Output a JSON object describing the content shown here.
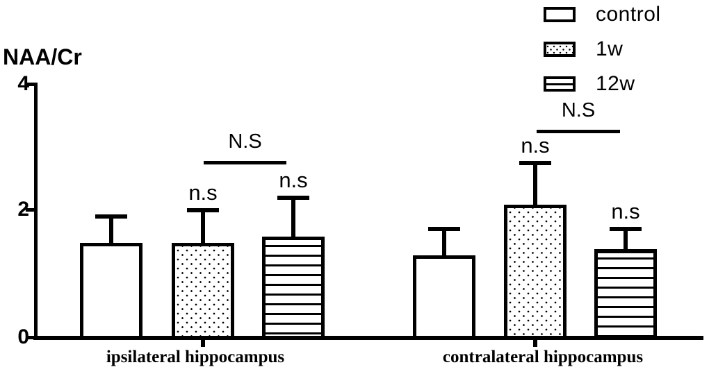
{
  "figure": {
    "background_color": "#ffffff",
    "ink_color": "#000000"
  },
  "chart_data": {
    "type": "bar",
    "title": "",
    "ylabel": "NAA/Cr",
    "xlabel": "",
    "ylim": [
      0,
      4
    ],
    "yticks": [
      0,
      2,
      4
    ],
    "grid": false,
    "legend_position": "top-right",
    "categories": [
      "ipsilateral hippocampus",
      "contralateral hippocampus"
    ],
    "series": [
      {
        "name": "control",
        "pattern": "plain",
        "values": [
          1.5,
          1.3
        ],
        "errors": [
          0.45,
          0.45
        ]
      },
      {
        "name": "1w",
        "pattern": "dots",
        "values": [
          1.5,
          2.1
        ],
        "errors": [
          0.55,
          0.7
        ]
      },
      {
        "name": "12w",
        "pattern": "hlines",
        "values": [
          1.6,
          1.4
        ],
        "errors": [
          0.65,
          0.35
        ]
      }
    ],
    "error_bar_style": "upper whisker with cap",
    "bar_annotations": [
      {
        "group": 0,
        "series": 1,
        "label": "n.s"
      },
      {
        "group": 0,
        "series": 2,
        "label": "n.s"
      },
      {
        "group": 1,
        "series": 1,
        "label": "n.s"
      },
      {
        "group": 1,
        "series": 2,
        "label": "n.s"
      }
    ],
    "comparisons": [
      {
        "group": 0,
        "between": [
          "1w",
          "12w"
        ],
        "label": "N.S"
      },
      {
        "group": 1,
        "between": [
          "1w",
          "12w"
        ],
        "label": "N.S"
      }
    ]
  }
}
